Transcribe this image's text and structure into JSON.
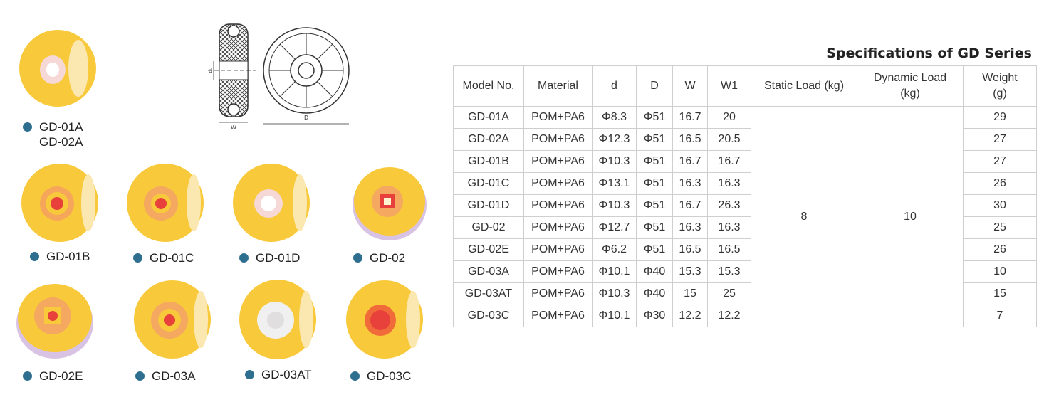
{
  "catalog": {
    "wheels": [
      {
        "id": "gd01a",
        "labels": [
          "GD-01A",
          "GD-02A"
        ],
        "hub": "white",
        "body": "#f8c93a"
      },
      {
        "id": "gd01b",
        "labels": [
          "GD-01B"
        ],
        "hub": "red",
        "body": "#f8c93a"
      },
      {
        "id": "gd01c",
        "labels": [
          "GD-01C"
        ],
        "hub": "red",
        "body": "#f8c93a"
      },
      {
        "id": "gd01d",
        "labels": [
          "GD-01D"
        ],
        "hub": "white",
        "body": "#f8c93a"
      },
      {
        "id": "gd02",
        "labels": [
          "GD-02"
        ],
        "hub": "red-square",
        "body": "#f8c93a"
      },
      {
        "id": "gd02e",
        "labels": [
          "GD-02E"
        ],
        "hub": "red-square",
        "body": "#f8c93a"
      },
      {
        "id": "gd03a",
        "labels": [
          "GD-03A"
        ],
        "hub": "red",
        "body": "#f8c93a"
      },
      {
        "id": "gd03at",
        "labels": [
          "GD-03AT"
        ],
        "hub": "white",
        "body": "#f8c93a"
      },
      {
        "id": "gd03c",
        "labels": [
          "GD-03C"
        ],
        "hub": "red",
        "body": "#f8c93a"
      }
    ],
    "drawing": {
      "label_d": "d",
      "label_W": "W",
      "label_D": "D"
    }
  },
  "spec": {
    "title": "Specifications of GD Series",
    "headers": [
      "Model No.",
      "Material",
      "d",
      "D",
      "W",
      "W1",
      "Static Load (kg)",
      "Dynamic Load (kg)",
      "Weight (g)"
    ],
    "header_lines": {
      "dynamic": [
        "Dynamic Load",
        "(kg)"
      ],
      "weight": [
        "Weight",
        "(g)"
      ]
    },
    "static_load": "8",
    "dynamic_load": "10",
    "rows": [
      {
        "model": "GD-01A",
        "material": "POM+PA6",
        "d": "Φ8.3",
        "D": "Φ51",
        "W": "16.7",
        "W1": "20",
        "weight": "29"
      },
      {
        "model": "GD-02A",
        "material": "POM+PA6",
        "d": "Φ12.3",
        "D": "Φ51",
        "W": "16.5",
        "W1": "20.5",
        "weight": "27"
      },
      {
        "model": "GD-01B",
        "material": "POM+PA6",
        "d": "Φ10.3",
        "D": "Φ51",
        "W": "16.7",
        "W1": "16.7",
        "weight": "27"
      },
      {
        "model": "GD-01C",
        "material": "POM+PA6",
        "d": "Φ13.1",
        "D": "Φ51",
        "W": "16.3",
        "W1": "16.3",
        "weight": "26"
      },
      {
        "model": "GD-01D",
        "material": "POM+PA6",
        "d": "Φ10.3",
        "D": "Φ51",
        "W": "16.7",
        "W1": "26.3",
        "weight": "30"
      },
      {
        "model": "GD-02",
        "material": "POM+PA6",
        "d": "Φ12.7",
        "D": "Φ51",
        "W": "16.3",
        "W1": "16.3",
        "weight": "25"
      },
      {
        "model": "GD-02E",
        "material": "POM+PA6",
        "d": "Φ6.2",
        "D": "Φ51",
        "W": "16.5",
        "W1": "16.5",
        "weight": "26"
      },
      {
        "model": "GD-03A",
        "material": "POM+PA6",
        "d": "Φ10.1",
        "D": "Φ40",
        "W": "15.3",
        "W1": "15.3",
        "weight": "10"
      },
      {
        "model": "GD-03AT",
        "material": "POM+PA6",
        "d": "Φ10.3",
        "D": "Φ40",
        "W": "15",
        "W1": "25",
        "weight": "15"
      },
      {
        "model": "GD-03C",
        "material": "POM+PA6",
        "d": "Φ10.1",
        "D": "Φ30",
        "W": "12.2",
        "W1": "12.2",
        "weight": "7"
      }
    ]
  }
}
